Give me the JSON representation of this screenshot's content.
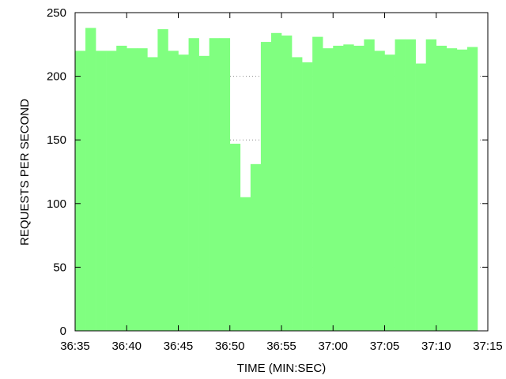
{
  "chart_data": {
    "type": "bar",
    "title": "",
    "xlabel": "TIME (MIN:SEC)",
    "ylabel": "REQUESTS PER SECOND",
    "ylim": [
      0,
      250
    ],
    "yticks": [
      "0",
      "50",
      "100",
      "150",
      "200",
      "250"
    ],
    "xtick_labels": [
      "36:35",
      "36:40",
      "36:45",
      "36:50",
      "36:55",
      "37:00",
      "37:05",
      "37:10",
      "37:15"
    ],
    "x_start": "36:35",
    "x_step_seconds": 1,
    "grid": "horizontal dotted",
    "bar_color": "#80ff80",
    "values": [
      220,
      238,
      220,
      220,
      224,
      222,
      222,
      215,
      237,
      220,
      217,
      230,
      216,
      230,
      230,
      147,
      105,
      131,
      227,
      234,
      232,
      215,
      211,
      231,
      222,
      224,
      225,
      224,
      229,
      220,
      217,
      229,
      229,
      210,
      229,
      224,
      222,
      221,
      223
    ]
  }
}
